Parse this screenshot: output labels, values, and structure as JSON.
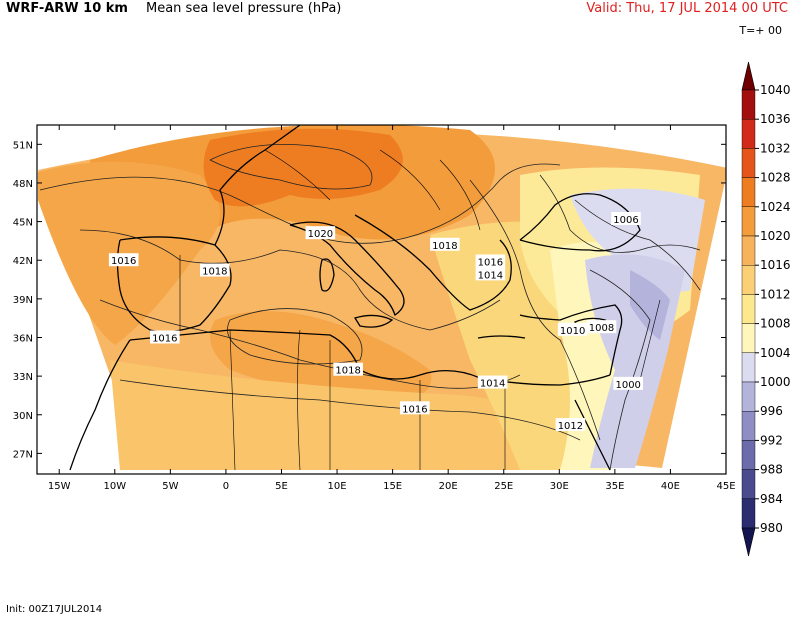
{
  "header": {
    "model": "WRF-ARW 10 km",
    "field": "Mean sea level pressure (hPa)",
    "valid": "Valid: Thu, 17 JUL 2014 00 UTC",
    "forecast_hour": "T=+ 00"
  },
  "footer": {
    "init": "Init: 00Z17JUL2014"
  },
  "map": {
    "lon_ticks": [
      "15W",
      "10W",
      "5W",
      "0",
      "5E",
      "10E",
      "15E",
      "20E",
      "25E",
      "30E",
      "35E",
      "40E",
      "45E"
    ],
    "lat_ticks": [
      "51N",
      "48N",
      "45N",
      "42N",
      "39N",
      "36N",
      "33N",
      "30N",
      "27N"
    ],
    "contour_labels": [
      {
        "text": "1020",
        "lon": 8.5,
        "lat": 44.1
      },
      {
        "text": "1018",
        "lon": 19.7,
        "lat": 43.2
      },
      {
        "text": "1016",
        "lon": -9.2,
        "lat": 42.0
      },
      {
        "text": "1018",
        "lon": -1.0,
        "lat": 41.2
      },
      {
        "text": "1016",
        "lon": 23.8,
        "lat": 41.9
      },
      {
        "text": "1014",
        "lon": 23.8,
        "lat": 40.9
      },
      {
        "text": "1016",
        "lon": -5.5,
        "lat": 36.0
      },
      {
        "text": "1006",
        "lon": 36.0,
        "lat": 45.2
      },
      {
        "text": "1010",
        "lon": 31.2,
        "lat": 36.6
      },
      {
        "text": "1008",
        "lon": 33.8,
        "lat": 36.8
      },
      {
        "text": "1018",
        "lon": 11.0,
        "lat": 33.5
      },
      {
        "text": "1014",
        "lon": 24.0,
        "lat": 32.5
      },
      {
        "text": "1016",
        "lon": 17.0,
        "lat": 30.5
      },
      {
        "text": "1000",
        "lon": 36.2,
        "lat": 32.4
      },
      {
        "text": "1012",
        "lon": 31.0,
        "lat": 29.2
      }
    ]
  },
  "colorbar": {
    "levels": [
      "1040",
      "1036",
      "1032",
      "1028",
      "1024",
      "1020",
      "1016",
      "1012",
      "1008",
      "1004",
      "1000",
      "996",
      "992",
      "988",
      "984",
      "980"
    ],
    "colors": [
      "#6e0000",
      "#a30f0f",
      "#d22a1a",
      "#e55519",
      "#ee7d22",
      "#f39c3b",
      "#f7b25c",
      "#fbcf73",
      "#fde88e",
      "#fff6bb",
      "#dcdcf0",
      "#b3b3dc",
      "#8e8ec4",
      "#6c6cac",
      "#4a4a8e",
      "#2c2c70",
      "#141450"
    ]
  }
}
